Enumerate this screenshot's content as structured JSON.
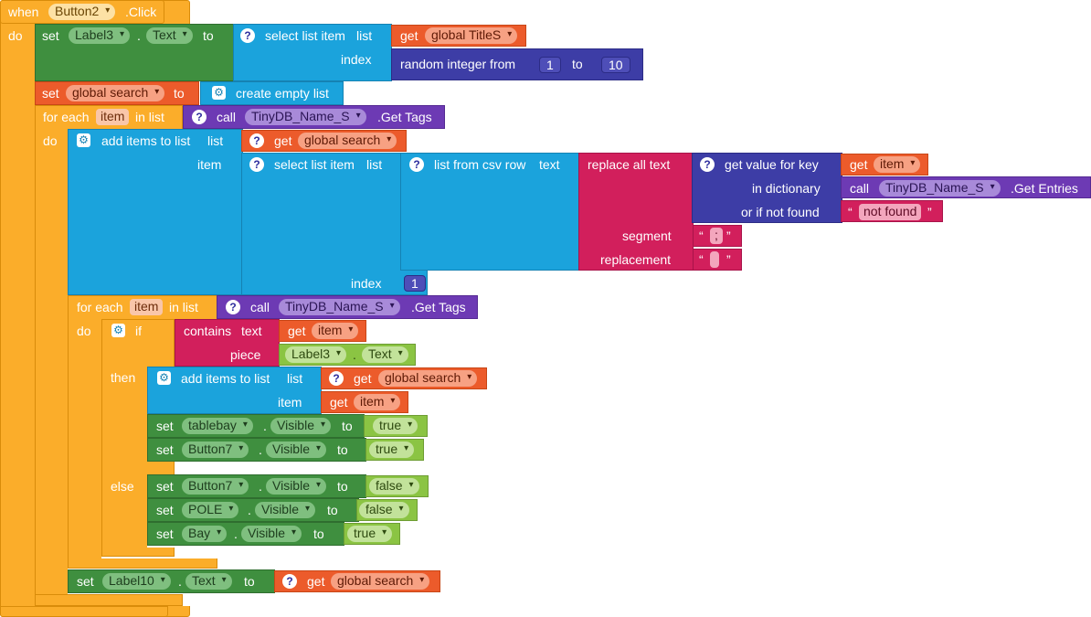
{
  "event": {
    "when": "when",
    "component": "Button2",
    "event_name": ".Click",
    "do": "do"
  },
  "kw": {
    "set": "set",
    "to": "to",
    "get": "get",
    "call": "call",
    "index": "index",
    "for_each": "for each",
    "in_list": "in list",
    "do": "do",
    "item": "item",
    "if": "if",
    "then": "then",
    "else": "else",
    "list": "list"
  },
  "b1": {
    "component": "Label3",
    "prop": "Text",
    "select_label": "select list item",
    "var": "global TitleS",
    "random_label": "random integer from",
    "from": "1",
    "to": "10"
  },
  "b2": {
    "var": "global search",
    "create": "create empty list"
  },
  "loop1": {
    "var": "item",
    "db": "TinyDB_Name_S",
    "method": ".Get Tags"
  },
  "add1": {
    "label": "add items to list",
    "var": "global search"
  },
  "sel2": {
    "label": "select list item",
    "csv_label": "list from csv row",
    "text": "text",
    "replace_label": "replace all text",
    "segment": "segment",
    "replacement": "replacement",
    "seg_value": ";",
    "rep_value": " ",
    "index_value": "1"
  },
  "lookup": {
    "label": "get value for key",
    "key_var": "item",
    "dict_label": "in dictionary",
    "db": "TinyDB_Name_S",
    "method": ".Get Entries",
    "notfound_label": "or if not found",
    "notfound_value": "not found"
  },
  "loop2": {
    "var": "item",
    "db": "TinyDB_Name_S",
    "method": ".Get Tags"
  },
  "cond": {
    "contains": "contains",
    "text": "text",
    "piece": "piece",
    "var": "item",
    "component": "Label3",
    "prop": "Text"
  },
  "add2": {
    "label": "add items to list",
    "var": "global search",
    "item_var": "item"
  },
  "then_sets": [
    {
      "component": "tablebay",
      "prop": "Visible",
      "value": "true"
    },
    {
      "component": "Button7",
      "prop": "Visible",
      "value": "true"
    }
  ],
  "else_sets": [
    {
      "component": "Button7",
      "prop": "Visible",
      "value": "false"
    },
    {
      "component": "POLE",
      "prop": "Visible",
      "value": "false"
    },
    {
      "component": "Bay",
      "prop": "Visible",
      "value": "true"
    }
  ],
  "final": {
    "component": "Label10",
    "prop": "Text",
    "var": "global search"
  },
  "quote_open": "“",
  "quote_close": "”",
  "icons": {
    "help": "question-icon",
    "mutator": "gear-icon",
    "dropdown": "chevron-down-icon"
  },
  "colors": {
    "event": "#fbad2a",
    "component": "#3f8f3f",
    "list": "#1ba3dc",
    "variable": "#ec5b2b",
    "math": "#3d3da6",
    "text": "#d21f5c",
    "procedure": "#6d3ab4",
    "logic": "#8bc443"
  }
}
